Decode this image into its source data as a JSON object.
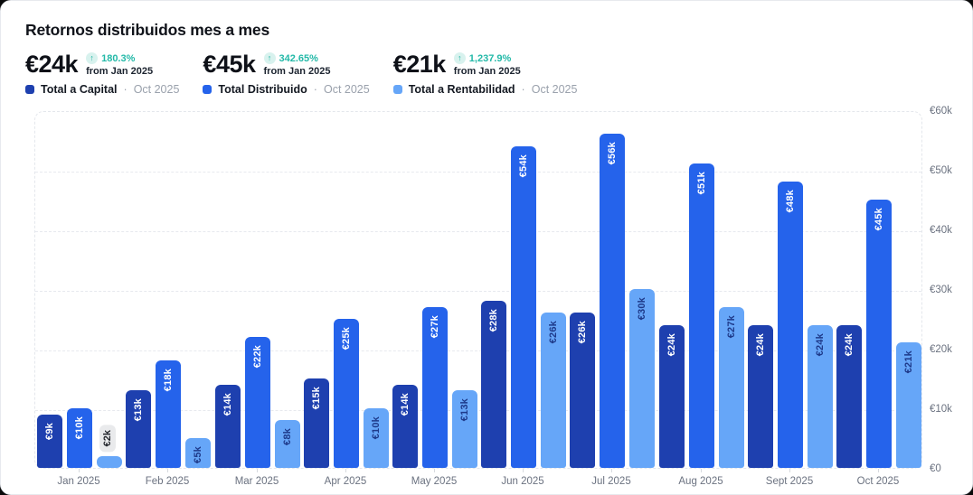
{
  "header": {
    "title": "Retornos distribuidos mes a mes"
  },
  "kpis": [
    {
      "value": "€24k",
      "change_pct": "180.3%",
      "change_note": "from Jan 2025",
      "legend_label": "Total a Capital",
      "legend_sep": "·",
      "legend_period": "Oct 2025",
      "color": "#1e40af"
    },
    {
      "value": "€45k",
      "change_pct": "342.65%",
      "change_note": "from Jan 2025",
      "legend_label": "Total Distribuido",
      "legend_sep": "·",
      "legend_period": "Oct 2025",
      "color": "#2563eb"
    },
    {
      "value": "€21k",
      "change_pct": "1,237.9%",
      "change_note": "from Jan 2025",
      "legend_label": "Total a Rentabilidad",
      "legend_sep": "·",
      "legend_period": "Oct 2025",
      "color": "#66a6f8"
    }
  ],
  "icons": {
    "change_icon": "arrow-up-circle-icon",
    "change_glyph": "↑"
  },
  "colors": {
    "accent_teal": "#23b9a8",
    "series_dark_blue": "#1e40af",
    "series_blue": "#2563eb",
    "series_light_blue": "#66a6f8",
    "label_on_light": "#1e3a8a",
    "label_on_dark": "#ffffff",
    "outside_pill_bg": "#e9eaec",
    "grid": "#e7e9ee",
    "axis_text": "#6b7280"
  },
  "chart_data": {
    "type": "bar",
    "title": "Retornos distribuidos mes a mes",
    "categories": [
      "Jan 2025",
      "Feb 2025",
      "Mar 2025",
      "Apr 2025",
      "May 2025",
      "Jun 2025",
      "Jul 2025",
      "Aug 2025",
      "Sept 2025",
      "Oct 2025"
    ],
    "series": [
      {
        "name": "Total a Capital",
        "color": "#1e40af",
        "label_color": "#ffffff",
        "values_eur_k": [
          9,
          13,
          14,
          15,
          14,
          28,
          26,
          24,
          24,
          24
        ]
      },
      {
        "name": "Total Distribuido",
        "color": "#2563eb",
        "label_color": "#ffffff",
        "values_eur_k": [
          10,
          18,
          22,
          25,
          27,
          54,
          56,
          51,
          48,
          45
        ]
      },
      {
        "name": "Total a Rentabilidad",
        "color": "#66a6f8",
        "label_color": "#1e3a8a",
        "values_eur_k": [
          2,
          5,
          8,
          10,
          13,
          26,
          30,
          27,
          24,
          21
        ]
      }
    ],
    "bar_label_format": "€{v}k",
    "y_ticks_top_to_bottom": [
      "€60k",
      "€50k",
      "€40k",
      "€30k",
      "€20k",
      "€10k",
      "€0"
    ],
    "ylim_eur": [
      0,
      60000
    ],
    "grid": "horizontal-dashed",
    "legend_position": "top"
  }
}
